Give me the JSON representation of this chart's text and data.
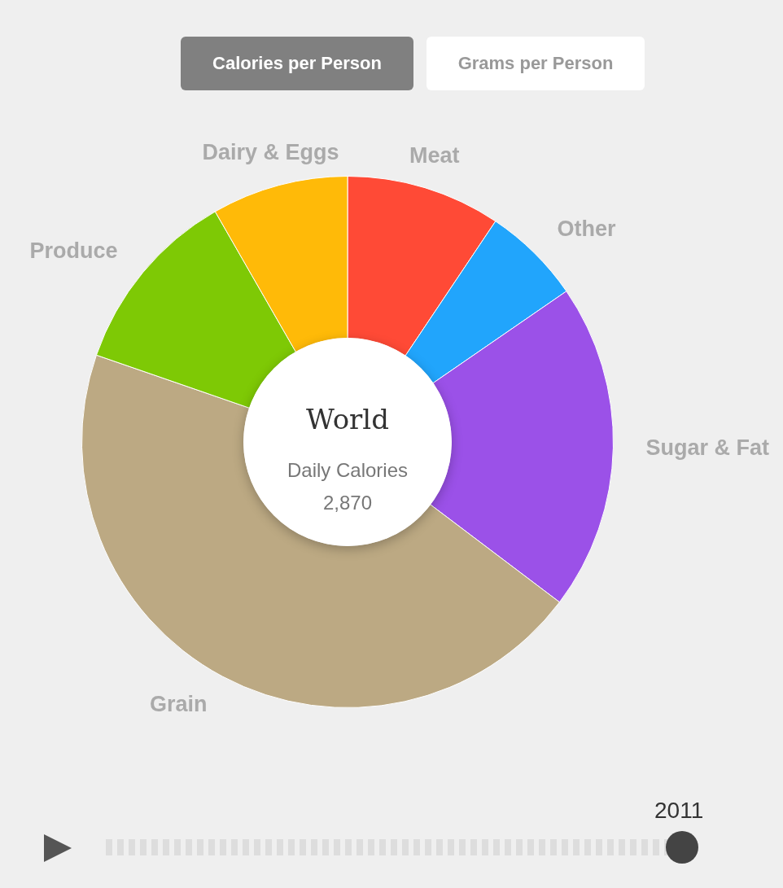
{
  "chart_data": {
    "type": "donut",
    "title": "World",
    "subtitle": "Daily Calories 2,870",
    "categories": [
      "Meat",
      "Other",
      "Sugar & Fat",
      "Grain",
      "Produce",
      "Dairy & Eggs"
    ],
    "values": [
      9.4,
      6.0,
      19.9,
      45.0,
      11.4,
      8.3
    ],
    "colors": [
      "#ff4a36",
      "#21a5fc",
      "#9b51e8",
      "#bca983",
      "#7ec905",
      "#ffba08"
    ],
    "legend": false,
    "annotations": [
      "Calories per Person",
      "Grams per Person",
      "2011"
    ]
  }
}
